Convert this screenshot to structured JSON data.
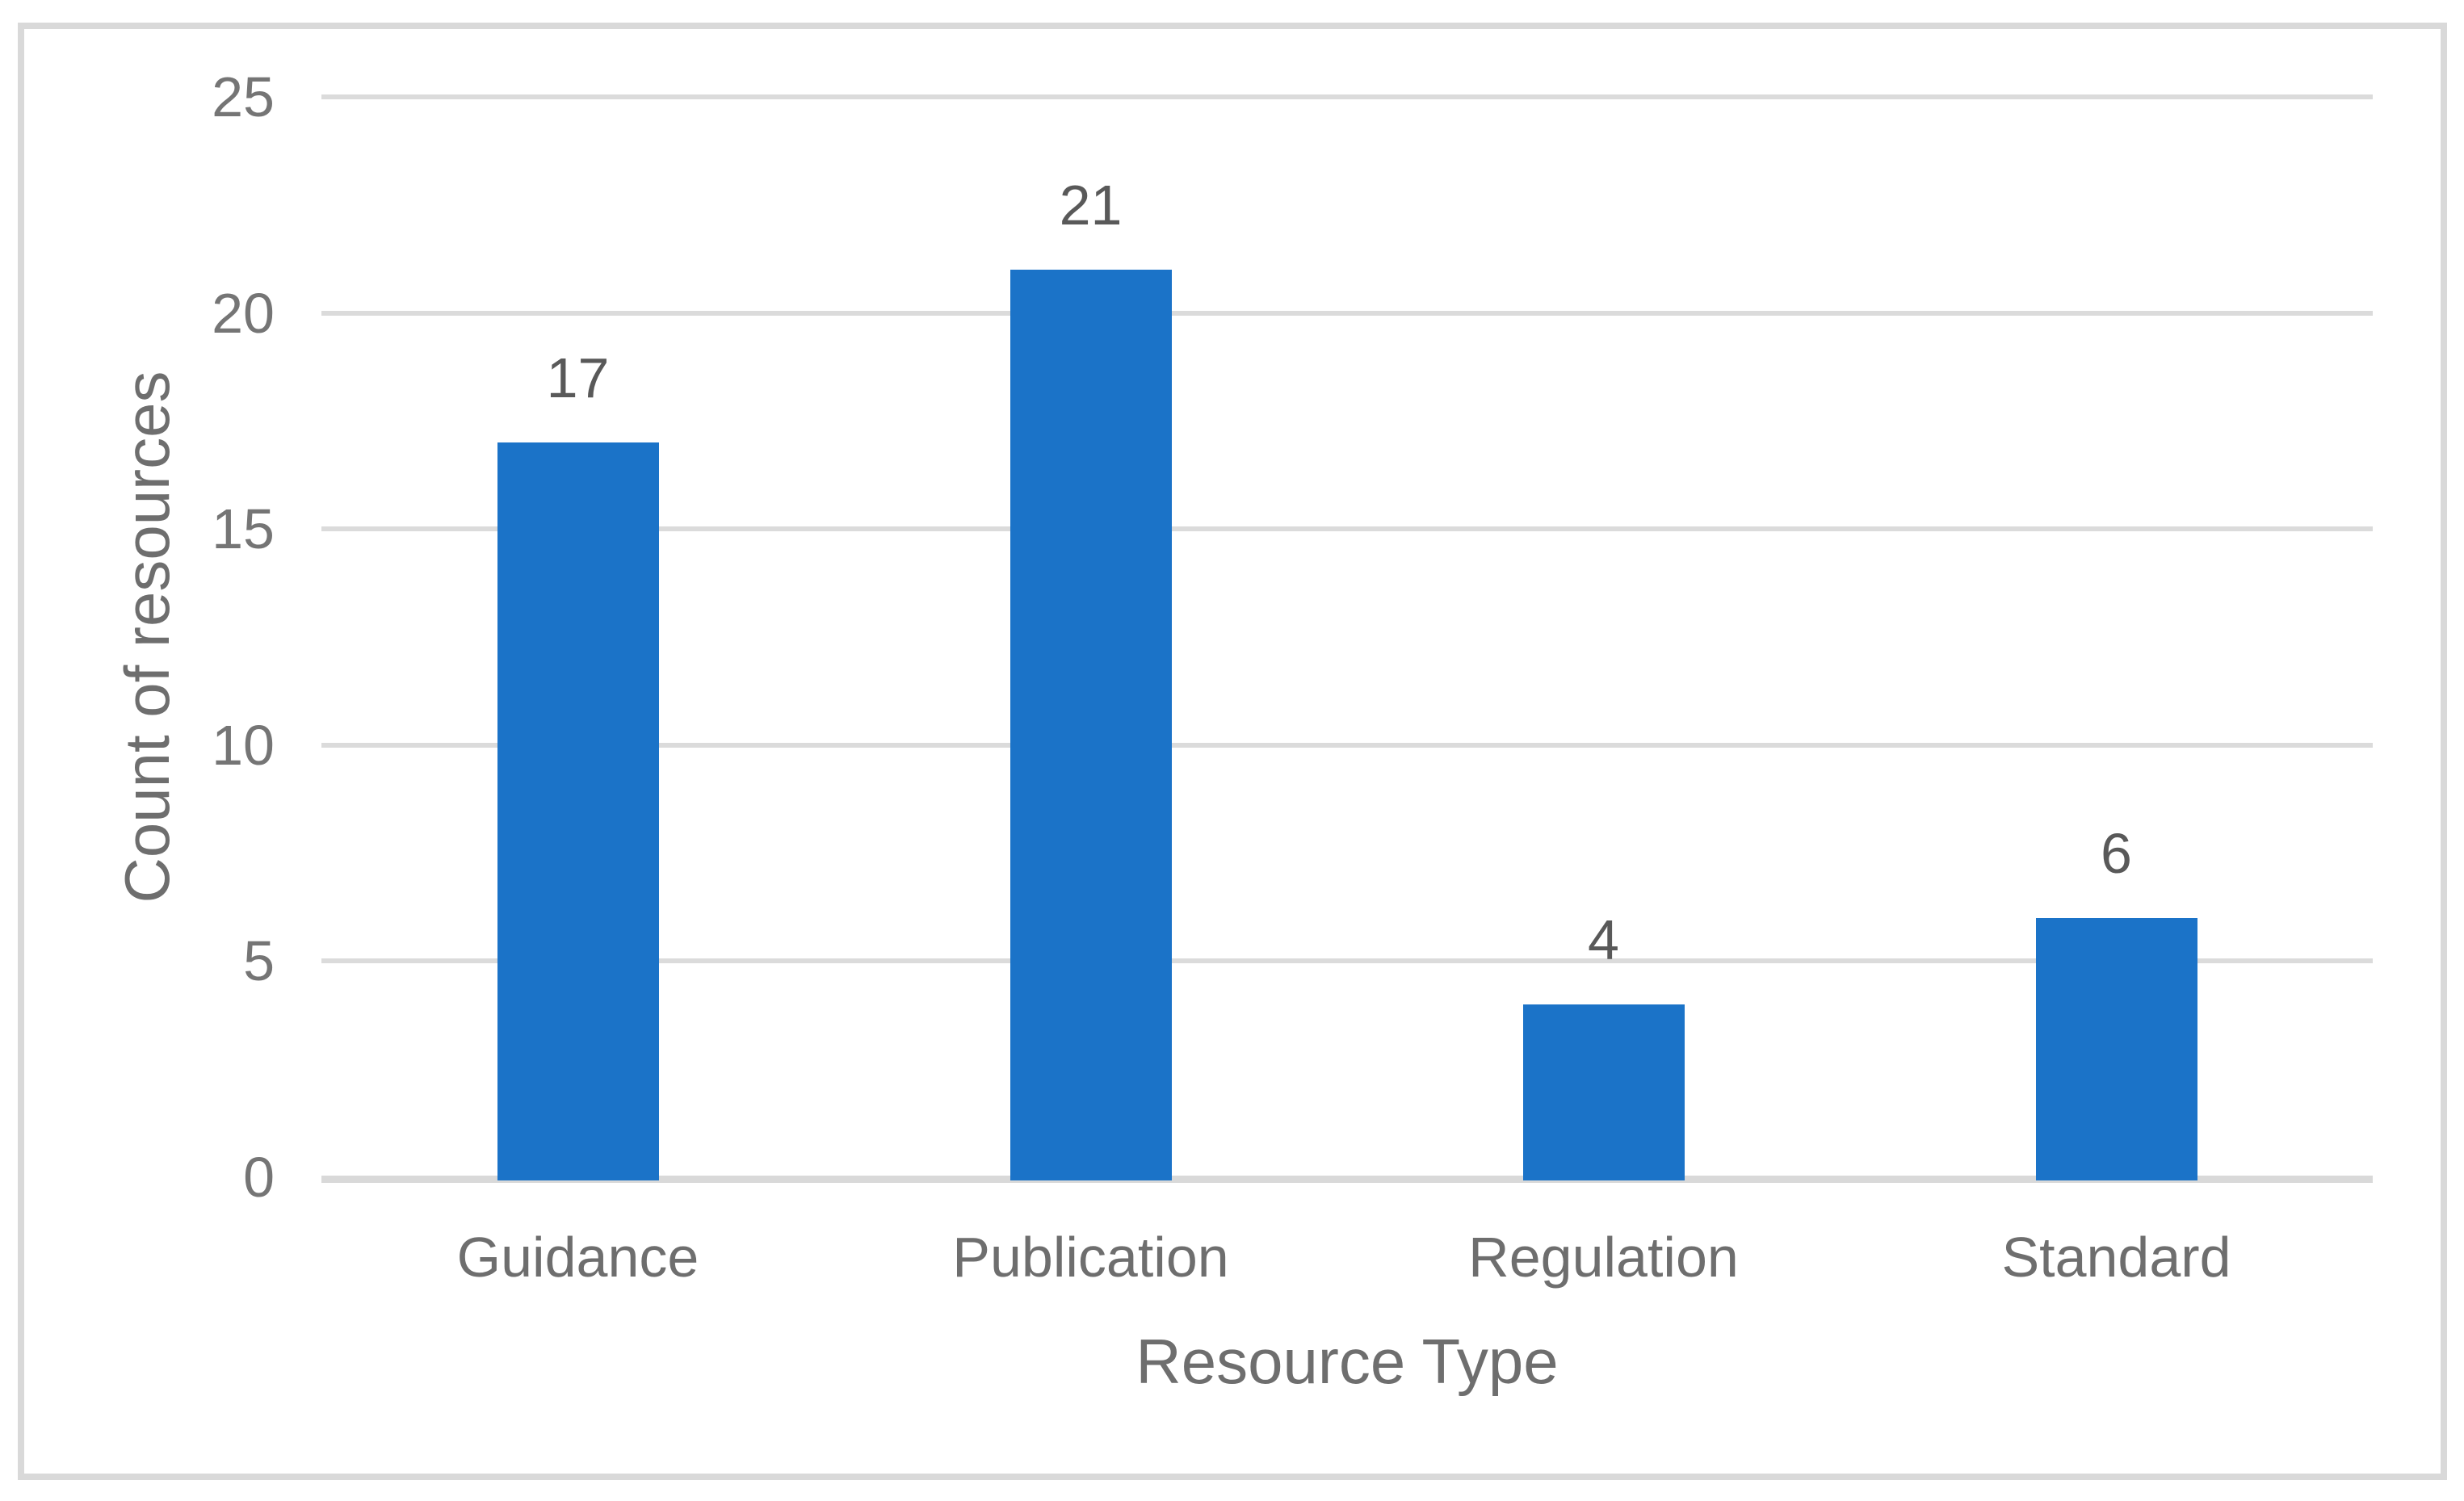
{
  "figure": {
    "background_color": "#FFFFFF",
    "border_color": "#D9D9D9"
  },
  "chart_data": {
    "type": "bar",
    "title": "",
    "categories": [
      "Guidance",
      "Publication",
      "Regulation",
      "Standard"
    ],
    "values": [
      17,
      21,
      4,
      6
    ],
    "data_labels": [
      "17",
      "21",
      "4",
      "6"
    ],
    "xlabel": "Resource Type",
    "ylabel": "Count of resources",
    "ylim": [
      0,
      25
    ],
    "yticks": [
      0,
      5,
      10,
      15,
      20,
      25
    ],
    "grid": true,
    "legend": false,
    "bar_color": "#1B73C8",
    "gridline_color": "#DBDBDB",
    "axis_line_color": "#D9D9D9",
    "tick_label_color": "#757575",
    "category_label_color": "#6E6E6E",
    "data_label_color": "#595959",
    "axis_title_color": "#6E6E6E"
  }
}
